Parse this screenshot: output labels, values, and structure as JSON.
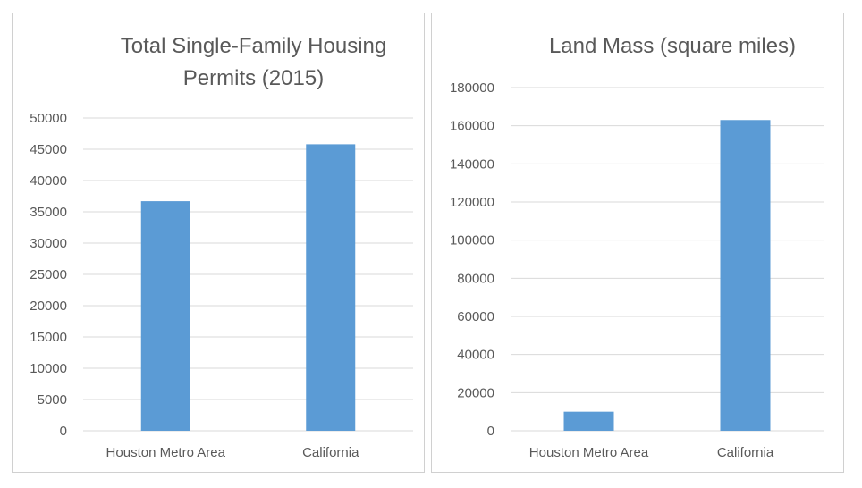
{
  "chart_data": [
    {
      "type": "bar",
      "title": "Total Single-Family Housing Permits (2015)",
      "title_lines": [
        "Total Single-Family Housing",
        "Permits (2015)"
      ],
      "categories": [
        "Houston Metro Area",
        "California"
      ],
      "values": [
        36700,
        45800
      ],
      "ylim": [
        0,
        50000
      ],
      "yticks": [
        0,
        5000,
        10000,
        15000,
        20000,
        25000,
        30000,
        35000,
        40000,
        45000,
        50000
      ],
      "xlabel": "",
      "ylabel": "",
      "grid": true,
      "color": "#5b9bd5"
    },
    {
      "type": "bar",
      "title": "Land Mass (square miles)",
      "title_lines": [
        "Land Mass (square miles)"
      ],
      "categories": [
        "Houston Metro Area",
        "California"
      ],
      "values": [
        10000,
        163000
      ],
      "ylim": [
        0,
        180000
      ],
      "yticks": [
        0,
        20000,
        40000,
        60000,
        80000,
        100000,
        120000,
        140000,
        160000,
        180000
      ],
      "xlabel": "",
      "ylabel": "",
      "grid": true,
      "color": "#5b9bd5"
    }
  ]
}
